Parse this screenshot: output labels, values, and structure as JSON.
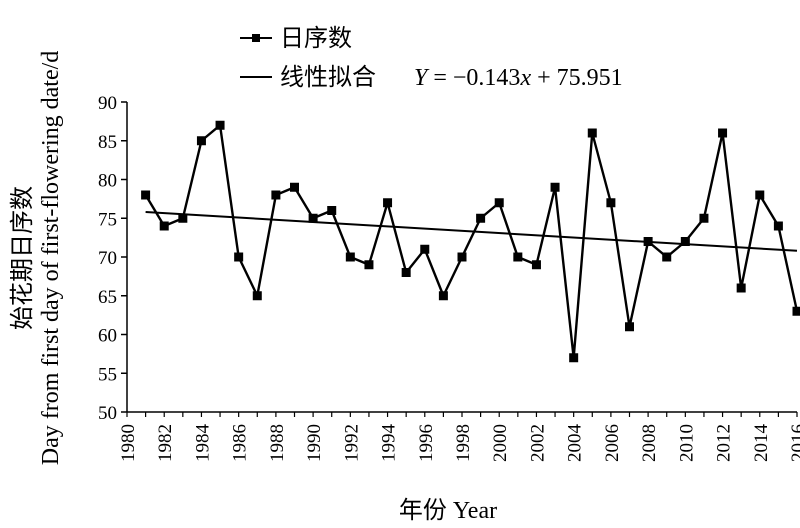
{
  "chart_data": {
    "type": "line",
    "xlabel": "年份 Year",
    "ylabel_cn": "始花期日序数",
    "ylabel_en": "Day from first day of first-flowering date/d",
    "xlim": [
      1980,
      2016
    ],
    "ylim": [
      50,
      90
    ],
    "x_ticks": [
      1980,
      1982,
      1984,
      1986,
      1988,
      1990,
      1992,
      1994,
      1996,
      1998,
      2000,
      2002,
      2004,
      2006,
      2008,
      2010,
      2012,
      2014,
      2016
    ],
    "y_ticks": [
      50,
      55,
      60,
      65,
      70,
      75,
      80,
      85,
      90
    ],
    "series": [
      {
        "name": "日序数",
        "marker": "square",
        "x": [
          1981,
          1982,
          1983,
          1984,
          1985,
          1986,
          1987,
          1988,
          1989,
          1990,
          1991,
          1992,
          1993,
          1994,
          1995,
          1996,
          1997,
          1998,
          1999,
          2000,
          2001,
          2002,
          2003,
          2004,
          2005,
          2006,
          2007,
          2008,
          2009,
          2010,
          2011,
          2012,
          2013,
          2014,
          2015,
          2016
        ],
        "y": [
          78,
          74,
          75,
          85,
          87,
          70,
          65,
          78,
          79,
          75,
          76,
          70,
          69,
          77,
          68,
          71,
          65,
          70,
          75,
          77,
          70,
          69,
          79,
          57,
          86,
          77,
          61,
          72,
          70,
          72,
          75,
          86,
          66,
          78,
          74,
          63
        ]
      }
    ],
    "trendline": {
      "name": "线性拟合",
      "equation": "Y = −0.143x + 75.951",
      "eq_var": "Y",
      "eq_body": " = −0.143",
      "eq_x": "x",
      "eq_tail": " + 75.951",
      "slope": -0.143,
      "intercept": 75.951,
      "x_start": 1981,
      "x_end": 2016
    },
    "legend_position": "top-left",
    "grid": false
  }
}
